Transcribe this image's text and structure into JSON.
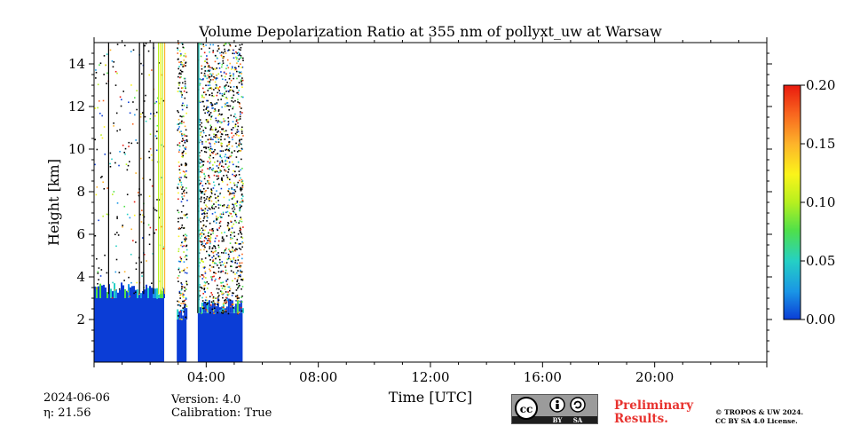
{
  "chart_data": {
    "type": "heatmap",
    "title": "Volume Depolarization Ratio at 355 nm of pollyxt_uw at Warsaw",
    "xlabel": "Time [UTC]",
    "ylabel": "Height [km]",
    "xlim_hours": [
      0,
      24
    ],
    "ylim": [
      0,
      15
    ],
    "x_tick_labels": [
      "04:00",
      "08:00",
      "12:00",
      "16:00",
      "20:00"
    ],
    "y_ticks": [
      2,
      4,
      6,
      8,
      10,
      12,
      14
    ],
    "colorbar": {
      "range": [
        0.0,
        0.2
      ],
      "ticks": [
        "0.00",
        "0.05",
        "0.10",
        "0.15",
        "0.20"
      ],
      "colors": [
        "#0b3dd6",
        "#1a96e6",
        "#25d0c4",
        "#4fe04a",
        "#b6f01f",
        "#fbf41a",
        "#fdb32a",
        "#f8641e",
        "#e91a0e"
      ]
    },
    "measurement_segments": [
      {
        "start_h": 0.0,
        "end_h": 2.5,
        "low_cloud_top_km": 3.0,
        "noise": "sparse"
      },
      {
        "start_h": 2.95,
        "end_h": 3.3,
        "low_cloud_top_km": 2.0,
        "noise": "dense"
      },
      {
        "start_h": 3.7,
        "end_h": 5.3,
        "low_cloud_top_km": 2.3,
        "noise": "dense"
      }
    ]
  },
  "footer": {
    "date": "2024-06-06",
    "eta": "η: 21.56",
    "version": "Version: 4.0",
    "calibration": "Calibration: True",
    "preliminary_line1": "Preliminary",
    "preliminary_line2": "Results.",
    "copyright_line1": "© TROPOS & UW 2024.",
    "copyright_line2": "CC BY SA 4.0 License."
  },
  "license_badge": {
    "cc": "cc",
    "by": "BY",
    "sa": "SA"
  }
}
